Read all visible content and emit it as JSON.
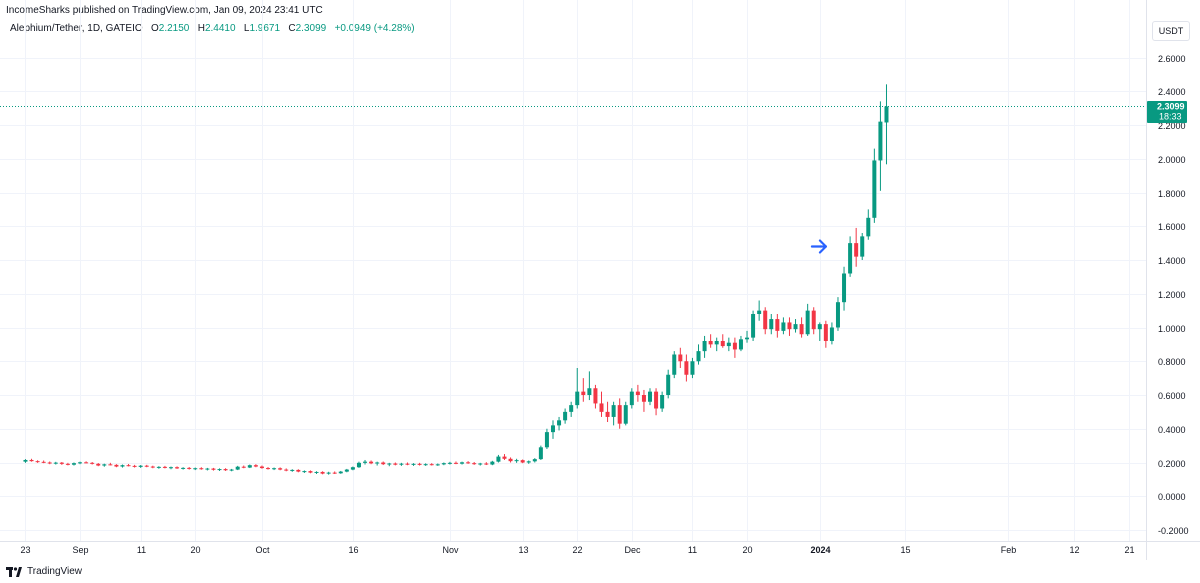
{
  "header": {
    "published": "IncomeSharks published on TradingView.com, Jan 09, 2024 23:41 UTC"
  },
  "symbol": {
    "name": "Alephium/Tether, 1D, GATEIO",
    "o_label": "O",
    "o_value": "2.2150",
    "h_label": "H",
    "h_value": "2.4410",
    "l_label": "L",
    "l_value": "1.9671",
    "c_label": "C",
    "c_value": "2.3099",
    "change": "+0.0949 (+4.28%)"
  },
  "currency": "USDT",
  "last_price": {
    "price": "2.3099",
    "countdown": "18:33"
  },
  "footer": {
    "brand": "TradingView"
  },
  "colors": {
    "up": "#089981",
    "down": "#f23645",
    "grid": "#f0f3fa",
    "axis_text": "#131722",
    "arrow": "#2962ff"
  },
  "annotation": {
    "type": "arrow-right-icon",
    "price": 1.48,
    "day": 133
  },
  "chart_data": {
    "type": "candlestick",
    "title": "",
    "xlabel": "",
    "ylabel": "",
    "ylim": [
      -0.25,
      2.7
    ],
    "y_ticks": [
      "2.6000",
      "2.4000",
      "2.2000",
      "2.0000",
      "1.8000",
      "1.6000",
      "1.4000",
      "1.2000",
      "1.0000",
      "0.8000",
      "0.6000",
      "0.4000",
      "0.2000",
      "0.0000",
      "-0.2000"
    ],
    "y_tick_values": [
      2.6,
      2.4,
      2.2,
      2.0,
      1.8,
      1.6,
      1.4,
      1.2,
      1.0,
      0.8,
      0.6,
      0.4,
      0.2,
      0.0,
      -0.2
    ],
    "x_ticks": [
      {
        "label": "23",
        "day": 0
      },
      {
        "label": "Sep",
        "day": 9
      },
      {
        "label": "11",
        "day": 19
      },
      {
        "label": "20",
        "day": 28
      },
      {
        "label": "Oct",
        "day": 39
      },
      {
        "label": "16",
        "day": 54
      },
      {
        "label": "Nov",
        "day": 70
      },
      {
        "label": "13",
        "day": 82
      },
      {
        "label": "22",
        "day": 91
      },
      {
        "label": "Dec",
        "day": 100
      },
      {
        "label": "11",
        "day": 110
      },
      {
        "label": "20",
        "day": 119
      },
      {
        "label": "2024",
        "day": 131
      },
      {
        "label": "15",
        "day": 145
      },
      {
        "label": "Feb",
        "day": 162
      },
      {
        "label": "12",
        "day": 173
      },
      {
        "label": "21",
        "day": 182
      }
    ],
    "x_range_days": [
      -4.2,
      184.8
    ],
    "grid": true,
    "candles": [
      [
        0.205,
        0.22,
        0.198,
        0.215
      ],
      [
        0.215,
        0.222,
        0.205,
        0.208
      ],
      [
        0.208,
        0.213,
        0.198,
        0.204
      ],
      [
        0.204,
        0.212,
        0.196,
        0.2
      ],
      [
        0.2,
        0.206,
        0.19,
        0.195
      ],
      [
        0.195,
        0.204,
        0.188,
        0.199
      ],
      [
        0.199,
        0.203,
        0.186,
        0.192
      ],
      [
        0.192,
        0.198,
        0.183,
        0.187
      ],
      [
        0.187,
        0.2,
        0.182,
        0.196
      ],
      [
        0.196,
        0.205,
        0.19,
        0.201
      ],
      [
        0.201,
        0.207,
        0.195,
        0.198
      ],
      [
        0.198,
        0.203,
        0.188,
        0.192
      ],
      [
        0.192,
        0.197,
        0.178,
        0.182
      ],
      [
        0.182,
        0.193,
        0.175,
        0.189
      ],
      [
        0.189,
        0.198,
        0.183,
        0.186
      ],
      [
        0.186,
        0.19,
        0.172,
        0.176
      ],
      [
        0.176,
        0.188,
        0.17,
        0.184
      ],
      [
        0.184,
        0.191,
        0.177,
        0.18
      ],
      [
        0.18,
        0.186,
        0.17,
        0.174
      ],
      [
        0.174,
        0.185,
        0.168,
        0.181
      ],
      [
        0.181,
        0.186,
        0.172,
        0.176
      ],
      [
        0.176,
        0.181,
        0.166,
        0.17
      ],
      [
        0.17,
        0.178,
        0.163,
        0.174
      ],
      [
        0.174,
        0.18,
        0.165,
        0.168
      ],
      [
        0.168,
        0.176,
        0.16,
        0.172
      ],
      [
        0.172,
        0.177,
        0.162,
        0.165
      ],
      [
        0.165,
        0.172,
        0.158,
        0.168
      ],
      [
        0.168,
        0.173,
        0.158,
        0.162
      ],
      [
        0.162,
        0.17,
        0.155,
        0.166
      ],
      [
        0.166,
        0.172,
        0.157,
        0.16
      ],
      [
        0.16,
        0.168,
        0.153,
        0.164
      ],
      [
        0.164,
        0.168,
        0.152,
        0.157
      ],
      [
        0.157,
        0.165,
        0.15,
        0.161
      ],
      [
        0.161,
        0.166,
        0.15,
        0.154
      ],
      [
        0.154,
        0.162,
        0.148,
        0.158
      ],
      [
        0.158,
        0.18,
        0.155,
        0.175
      ],
      [
        0.175,
        0.182,
        0.166,
        0.17
      ],
      [
        0.17,
        0.188,
        0.167,
        0.184
      ],
      [
        0.184,
        0.19,
        0.172,
        0.176
      ],
      [
        0.176,
        0.182,
        0.163,
        0.167
      ],
      [
        0.167,
        0.173,
        0.158,
        0.162
      ],
      [
        0.162,
        0.17,
        0.155,
        0.166
      ],
      [
        0.166,
        0.171,
        0.154,
        0.158
      ],
      [
        0.158,
        0.165,
        0.148,
        0.152
      ],
      [
        0.152,
        0.16,
        0.145,
        0.156
      ],
      [
        0.156,
        0.16,
        0.142,
        0.146
      ],
      [
        0.146,
        0.153,
        0.138,
        0.149
      ],
      [
        0.149,
        0.153,
        0.136,
        0.14
      ],
      [
        0.14,
        0.148,
        0.132,
        0.144
      ],
      [
        0.144,
        0.148,
        0.13,
        0.134
      ],
      [
        0.134,
        0.145,
        0.128,
        0.14
      ],
      [
        0.14,
        0.147,
        0.132,
        0.136
      ],
      [
        0.136,
        0.15,
        0.133,
        0.146
      ],
      [
        0.146,
        0.162,
        0.142,
        0.158
      ],
      [
        0.158,
        0.176,
        0.154,
        0.172
      ],
      [
        0.172,
        0.205,
        0.168,
        0.198
      ],
      [
        0.198,
        0.215,
        0.188,
        0.205
      ],
      [
        0.205,
        0.212,
        0.19,
        0.195
      ],
      [
        0.195,
        0.205,
        0.182,
        0.2
      ],
      [
        0.2,
        0.206,
        0.185,
        0.19
      ],
      [
        0.19,
        0.198,
        0.178,
        0.194
      ],
      [
        0.194,
        0.2,
        0.183,
        0.187
      ],
      [
        0.187,
        0.198,
        0.18,
        0.193
      ],
      [
        0.193,
        0.2,
        0.184,
        0.188
      ],
      [
        0.188,
        0.196,
        0.18,
        0.192
      ],
      [
        0.192,
        0.198,
        0.182,
        0.186
      ],
      [
        0.186,
        0.195,
        0.18,
        0.19
      ],
      [
        0.19,
        0.196,
        0.182,
        0.185
      ],
      [
        0.185,
        0.194,
        0.18,
        0.189
      ],
      [
        0.189,
        0.2,
        0.184,
        0.196
      ],
      [
        0.196,
        0.204,
        0.188,
        0.198
      ],
      [
        0.198,
        0.206,
        0.19,
        0.193
      ],
      [
        0.193,
        0.205,
        0.188,
        0.201
      ],
      [
        0.201,
        0.208,
        0.192,
        0.196
      ],
      [
        0.196,
        0.203,
        0.186,
        0.19
      ],
      [
        0.19,
        0.198,
        0.182,
        0.194
      ],
      [
        0.194,
        0.202,
        0.185,
        0.188
      ],
      [
        0.188,
        0.21,
        0.184,
        0.205
      ],
      [
        0.205,
        0.245,
        0.2,
        0.235
      ],
      [
        0.235,
        0.25,
        0.215,
        0.222
      ],
      [
        0.222,
        0.23,
        0.2,
        0.208
      ],
      [
        0.208,
        0.222,
        0.198,
        0.214
      ],
      [
        0.214,
        0.218,
        0.196,
        0.2
      ],
      [
        0.2,
        0.212,
        0.192,
        0.207
      ],
      [
        0.207,
        0.226,
        0.2,
        0.22
      ],
      [
        0.22,
        0.3,
        0.215,
        0.29
      ],
      [
        0.29,
        0.4,
        0.28,
        0.38
      ],
      [
        0.38,
        0.45,
        0.34,
        0.42
      ],
      [
        0.42,
        0.47,
        0.39,
        0.45
      ],
      [
        0.45,
        0.52,
        0.43,
        0.5
      ],
      [
        0.5,
        0.56,
        0.47,
        0.54
      ],
      [
        0.54,
        0.76,
        0.52,
        0.62
      ],
      [
        0.62,
        0.7,
        0.56,
        0.6
      ],
      [
        0.6,
        0.74,
        0.57,
        0.64
      ],
      [
        0.64,
        0.66,
        0.52,
        0.55
      ],
      [
        0.55,
        0.62,
        0.47,
        0.5
      ],
      [
        0.5,
        0.56,
        0.44,
        0.47
      ],
      [
        0.47,
        0.56,
        0.42,
        0.54
      ],
      [
        0.54,
        0.58,
        0.4,
        0.43
      ],
      [
        0.43,
        0.56,
        0.42,
        0.54
      ],
      [
        0.54,
        0.64,
        0.52,
        0.62
      ],
      [
        0.62,
        0.66,
        0.56,
        0.6
      ],
      [
        0.6,
        0.63,
        0.5,
        0.56
      ],
      [
        0.56,
        0.64,
        0.54,
        0.62
      ],
      [
        0.62,
        0.64,
        0.48,
        0.52
      ],
      [
        0.52,
        0.62,
        0.5,
        0.6
      ],
      [
        0.6,
        0.75,
        0.58,
        0.72
      ],
      [
        0.72,
        0.86,
        0.7,
        0.84
      ],
      [
        0.84,
        0.88,
        0.76,
        0.8
      ],
      [
        0.8,
        0.84,
        0.68,
        0.72
      ],
      [
        0.72,
        0.82,
        0.7,
        0.8
      ],
      [
        0.8,
        0.9,
        0.78,
        0.86
      ],
      [
        0.86,
        0.95,
        0.82,
        0.92
      ],
      [
        0.92,
        0.96,
        0.88,
        0.9
      ],
      [
        0.9,
        0.94,
        0.86,
        0.92
      ],
      [
        0.92,
        0.96,
        0.88,
        0.89
      ],
      [
        0.89,
        0.94,
        0.86,
        0.91
      ],
      [
        0.91,
        0.94,
        0.82,
        0.87
      ],
      [
        0.87,
        0.95,
        0.86,
        0.93
      ],
      [
        0.93,
        0.98,
        0.91,
        0.94
      ],
      [
        0.94,
        1.1,
        0.92,
        1.08
      ],
      [
        1.08,
        1.16,
        1.04,
        1.1
      ],
      [
        1.1,
        1.12,
        0.96,
        0.99
      ],
      [
        0.99,
        1.08,
        0.96,
        1.05
      ],
      [
        1.05,
        1.08,
        0.94,
        0.98
      ],
      [
        0.98,
        1.06,
        0.96,
        1.03
      ],
      [
        1.03,
        1.06,
        0.95,
        0.99
      ],
      [
        0.99,
        1.05,
        0.97,
        1.02
      ],
      [
        1.02,
        1.06,
        0.94,
        0.96
      ],
      [
        0.96,
        1.14,
        0.95,
        1.1
      ],
      [
        1.1,
        1.12,
        0.96,
        0.99
      ],
      [
        0.99,
        1.03,
        0.92,
        1.02
      ],
      [
        1.02,
        1.04,
        0.88,
        0.92
      ],
      [
        0.92,
        1.03,
        0.9,
        1.0
      ],
      [
        1.0,
        1.18,
        0.98,
        1.15
      ],
      [
        1.15,
        1.36,
        1.1,
        1.32
      ],
      [
        1.32,
        1.54,
        1.3,
        1.5
      ],
      [
        1.5,
        1.59,
        1.36,
        1.42
      ],
      [
        1.42,
        1.56,
        1.4,
        1.54
      ],
      [
        1.54,
        1.7,
        1.52,
        1.65
      ],
      [
        1.65,
        2.06,
        1.62,
        1.99
      ],
      [
        1.99,
        2.34,
        1.81,
        2.22
      ],
      [
        2.215,
        2.441,
        1.967,
        2.3099
      ]
    ]
  }
}
